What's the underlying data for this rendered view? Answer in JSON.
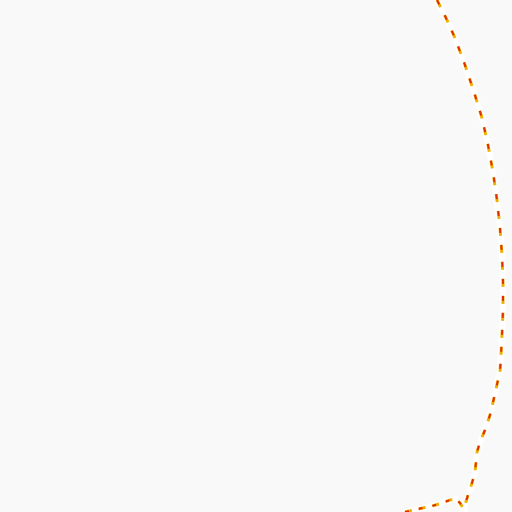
{
  "map": {
    "background_color": "#f9f9f9",
    "boundary": {
      "casing_color": "#ffffff",
      "dash_primary_color": "#e03000",
      "dash_secondary_color": "#f0b000",
      "style": "dashed"
    }
  }
}
